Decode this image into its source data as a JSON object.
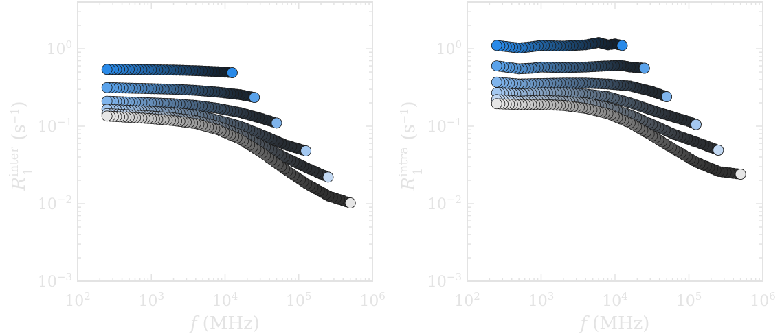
{
  "chart_data": [
    {
      "type": "scatter",
      "x_scale": "log",
      "y_scale": "log",
      "xlim": [
        100,
        1000000
      ],
      "ylim": [
        0.001,
        4
      ],
      "xlabel": "f (MHz)",
      "ylabel": "R1inter (s−1)",
      "xlabel_parts": {
        "var": "f",
        "unit": "(MHz)"
      },
      "ylabel_parts": {
        "sym": "R",
        "sub": "1",
        "sup": "inter",
        "unit_pre": "(s",
        "unit_exp": "−1",
        "unit_post": ")"
      },
      "x_ticks": [
        {
          "base": "10",
          "exp": "2"
        },
        {
          "base": "10",
          "exp": "3"
        },
        {
          "base": "10",
          "exp": "4"
        },
        {
          "base": "10",
          "exp": "5"
        },
        {
          "base": "10",
          "exp": "6"
        }
      ],
      "y_ticks": [
        {
          "base": "10",
          "exp": "−3"
        },
        {
          "base": "10",
          "exp": "−2"
        },
        {
          "base": "10",
          "exp": "−1"
        },
        {
          "base": "10",
          "exp": "0"
        }
      ],
      "grid": false,
      "series": [
        {
          "color": "#2a8ae8",
          "x": [
            250,
            500,
            1000,
            2000,
            4000,
            8000,
            12500
          ],
          "y": [
            0.54,
            0.54,
            0.535,
            0.53,
            0.52,
            0.505,
            0.49
          ]
        },
        {
          "color": "#5aa2ea",
          "x": [
            250,
            500,
            1000,
            2000,
            4000,
            8000,
            16000,
            25000
          ],
          "y": [
            0.315,
            0.31,
            0.305,
            0.3,
            0.29,
            0.275,
            0.255,
            0.235
          ]
        },
        {
          "color": "#7fb4ec",
          "x": [
            250,
            500,
            1000,
            2000,
            4000,
            8000,
            16000,
            32000,
            50000
          ],
          "y": [
            0.21,
            0.205,
            0.2,
            0.195,
            0.185,
            0.17,
            0.15,
            0.125,
            0.11
          ]
        },
        {
          "color": "#a4c8f0",
          "x": [
            250,
            500,
            1000,
            2000,
            4000,
            8000,
            16000,
            32000,
            64000,
            125000
          ],
          "y": [
            0.165,
            0.16,
            0.155,
            0.15,
            0.14,
            0.12,
            0.1,
            0.077,
            0.058,
            0.048
          ]
        },
        {
          "color": "#c2d8f2",
          "x": [
            250,
            500,
            1000,
            2000,
            4000,
            8000,
            16000,
            32000,
            64000,
            128000,
            250000
          ],
          "y": [
            0.145,
            0.14,
            0.135,
            0.128,
            0.118,
            0.1,
            0.078,
            0.056,
            0.04,
            0.029,
            0.022
          ]
        },
        {
          "color": "#e6e6e6",
          "x": [
            250,
            500,
            1000,
            2000,
            4000,
            8000,
            16000,
            32000,
            64000,
            128000,
            256000,
            500000
          ],
          "y": [
            0.135,
            0.13,
            0.125,
            0.118,
            0.108,
            0.09,
            0.068,
            0.045,
            0.028,
            0.018,
            0.0125,
            0.0102
          ]
        }
      ]
    },
    {
      "type": "scatter",
      "x_scale": "log",
      "y_scale": "log",
      "xlim": [
        100,
        1000000
      ],
      "ylim": [
        0.001,
        4
      ],
      "xlabel": "f (MHz)",
      "ylabel": "R1intra (s−1)",
      "xlabel_parts": {
        "var": "f",
        "unit": "(MHz)"
      },
      "ylabel_parts": {
        "sym": "R",
        "sub": "1",
        "sup": "intra",
        "unit_pre": "(s",
        "unit_exp": "−1",
        "unit_post": ")"
      },
      "x_ticks": [
        {
          "base": "10",
          "exp": "2"
        },
        {
          "base": "10",
          "exp": "3"
        },
        {
          "base": "10",
          "exp": "4"
        },
        {
          "base": "10",
          "exp": "5"
        },
        {
          "base": "10",
          "exp": "6"
        }
      ],
      "y_ticks": [
        {
          "base": "10",
          "exp": "−3"
        },
        {
          "base": "10",
          "exp": "−2"
        },
        {
          "base": "10",
          "exp": "−1"
        },
        {
          "base": "10",
          "exp": "0"
        }
      ],
      "grid": false,
      "series": [
        {
          "color": "#2a8ae8",
          "x": [
            250,
            500,
            750,
            1000,
            2000,
            4000,
            6000,
            8000,
            10000,
            12500
          ],
          "y": [
            1.1,
            1.02,
            1.06,
            1.1,
            1.08,
            1.12,
            1.2,
            1.12,
            1.15,
            1.1
          ]
        },
        {
          "color": "#5aa2ea",
          "x": [
            250,
            500,
            750,
            1000,
            2000,
            4000,
            8000,
            12000,
            16000,
            20000,
            25000
          ],
          "y": [
            0.6,
            0.55,
            0.56,
            0.58,
            0.57,
            0.58,
            0.6,
            0.61,
            0.58,
            0.57,
            0.56
          ]
        },
        {
          "color": "#7fb4ec",
          "x": [
            250,
            500,
            1000,
            2000,
            4000,
            8000,
            16000,
            32000,
            50000
          ],
          "y": [
            0.37,
            0.35,
            0.355,
            0.36,
            0.36,
            0.35,
            0.33,
            0.28,
            0.24
          ]
        },
        {
          "color": "#a4c8f0",
          "x": [
            250,
            500,
            1000,
            2000,
            4000,
            8000,
            16000,
            32000,
            64000,
            100000,
            125000
          ],
          "y": [
            0.27,
            0.26,
            0.27,
            0.27,
            0.26,
            0.24,
            0.2,
            0.16,
            0.13,
            0.115,
            0.105
          ]
        },
        {
          "color": "#c2d8f2",
          "x": [
            250,
            500,
            1000,
            2000,
            4000,
            8000,
            16000,
            32000,
            64000,
            128000,
            200000,
            250000
          ],
          "y": [
            0.22,
            0.21,
            0.215,
            0.21,
            0.2,
            0.175,
            0.14,
            0.105,
            0.078,
            0.062,
            0.053,
            0.049
          ]
        },
        {
          "color": "#e6e6e6",
          "x": [
            250,
            500,
            1000,
            2000,
            4000,
            8000,
            16000,
            32000,
            64000,
            128000,
            256000,
            500000
          ],
          "y": [
            0.195,
            0.19,
            0.19,
            0.185,
            0.17,
            0.145,
            0.11,
            0.075,
            0.05,
            0.034,
            0.026,
            0.024
          ]
        }
      ]
    }
  ]
}
